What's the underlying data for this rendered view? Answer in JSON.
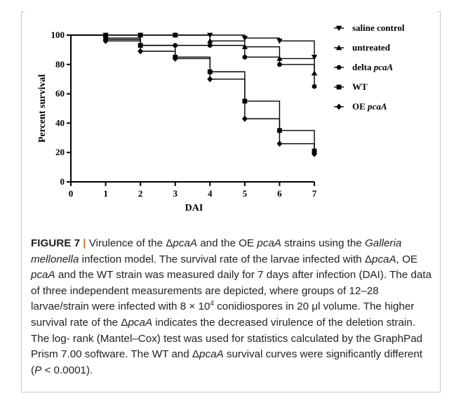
{
  "chart_data": {
    "type": "line",
    "step": true,
    "xlabel": "DAI",
    "ylabel": "Percent survival",
    "xlim": [
      0,
      7
    ],
    "ylim": [
      0,
      100
    ],
    "x_ticks": [
      "0",
      "1",
      "2",
      "3",
      "4",
      "5",
      "6",
      "7"
    ],
    "y_ticks": [
      "0",
      "20",
      "40",
      "60",
      "80",
      "100"
    ],
    "grid": false,
    "legend_position": "right",
    "series": [
      {
        "name": "saline control",
        "marker": "triangle-down",
        "legend_parts": [
          "saline control"
        ],
        "legend_italic": [
          false
        ],
        "x": [
          0,
          1,
          2,
          3,
          4,
          5,
          6,
          7
        ],
        "y": [
          100,
          100,
          100,
          100,
          100,
          98,
          96,
          85
        ]
      },
      {
        "name": "untreated",
        "marker": "triangle-up",
        "legend_parts": [
          "untreated"
        ],
        "legend_italic": [
          false
        ],
        "x": [
          0,
          1,
          2,
          3,
          4,
          5,
          6,
          7
        ],
        "y": [
          100,
          100,
          100,
          100,
          96,
          92,
          84,
          74
        ]
      },
      {
        "name": "delta pcaA",
        "marker": "circle",
        "legend_parts": [
          "delta ",
          "pcaA"
        ],
        "legend_italic": [
          false,
          true
        ],
        "x": [
          0,
          1,
          2,
          3,
          4,
          5,
          6,
          7
        ],
        "y": [
          100,
          97,
          93,
          93,
          93,
          85,
          80,
          65
        ]
      },
      {
        "name": "WT",
        "marker": "square",
        "legend_parts": [
          "WT"
        ],
        "legend_italic": [
          false
        ],
        "x": [
          0,
          1,
          2,
          3,
          4,
          5,
          6,
          7
        ],
        "y": [
          100,
          98,
          93,
          85,
          75,
          55,
          35,
          21
        ]
      },
      {
        "name": "OE pcaA",
        "marker": "diamond",
        "legend_parts": [
          "OE ",
          "pcaA"
        ],
        "legend_italic": [
          false,
          true
        ],
        "x": [
          0,
          1,
          2,
          3,
          4,
          5,
          6,
          7
        ],
        "y": [
          100,
          96,
          89,
          84,
          70,
          43,
          26,
          19
        ]
      }
    ]
  },
  "caption": {
    "label": "FIGURE 7",
    "separator": " | ",
    "parts": [
      {
        "t": "Virulence of the Δ",
        "i": false
      },
      {
        "t": "pcaA",
        "i": true
      },
      {
        "t": " and the OE ",
        "i": false
      },
      {
        "t": "pcaA",
        "i": true
      },
      {
        "t": " strains using the ",
        "i": false
      },
      {
        "t": "Galleria mellonella",
        "i": true
      },
      {
        "t": " infection model. The survival rate of the larvae infected with Δ",
        "i": false
      },
      {
        "t": "pcaA",
        "i": true
      },
      {
        "t": ", OE ",
        "i": false
      },
      {
        "t": "pcaA",
        "i": true
      },
      {
        "t": " and the WT strain was measured daily for 7 days after infection (DAI). The data of three independent measurements are depicted, where groups of 12–28 larvae/strain were infected with 8 × 10",
        "i": false
      },
      {
        "t": "4",
        "i": false,
        "sup": true
      },
      {
        "t": " conidiospores in 20 μl volume. The higher survival rate of the Δ",
        "i": false
      },
      {
        "t": "pcaA",
        "i": true
      },
      {
        "t": " indicates the decreased virulence of the deletion strain. The log- rank (Mantel–Cox) test was used for statistics calculated by the GraphPad Prism 7.00 software. The WT and Δ",
        "i": false
      },
      {
        "t": "pcaA",
        "i": true
      },
      {
        "t": " survival curves were significantly different (",
        "i": false
      },
      {
        "t": "P",
        "i": true
      },
      {
        "t": " < 0.0001).",
        "i": false
      }
    ]
  }
}
